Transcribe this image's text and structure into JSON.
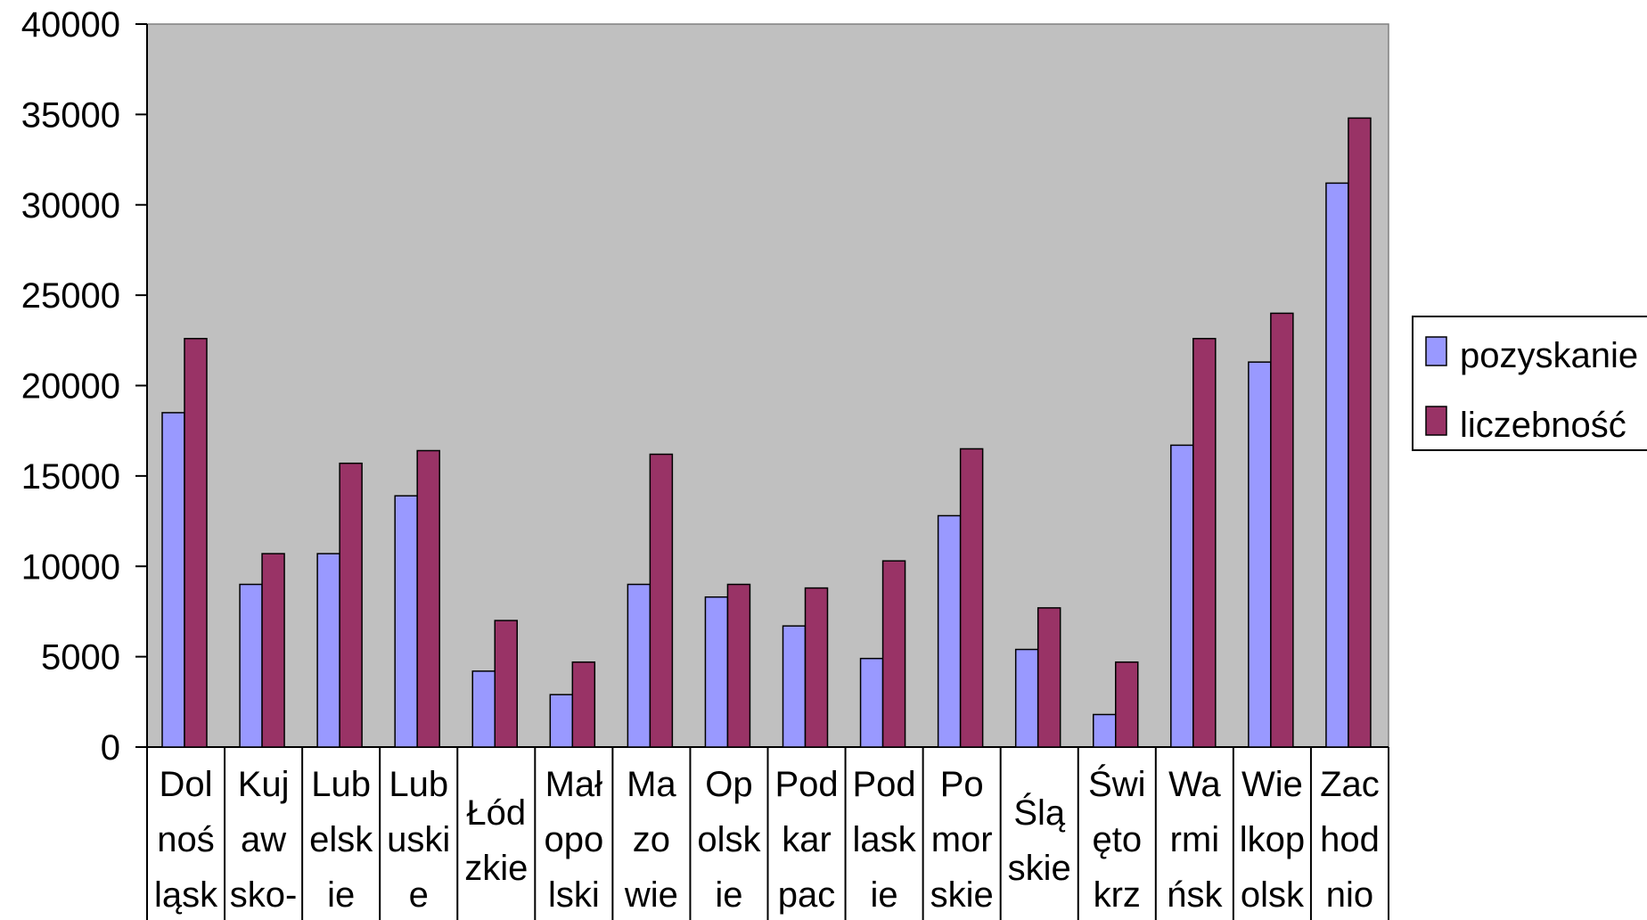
{
  "chart_data": {
    "type": "bar",
    "categories": [
      [
        "Dol",
        "noś",
        "ląsk"
      ],
      [
        "Kuj",
        "aw",
        "sko-"
      ],
      [
        "Lub",
        "elsk",
        "ie"
      ],
      [
        "Lub",
        "uski",
        "e"
      ],
      [
        "Łód",
        "zkie"
      ],
      [
        "Mał",
        "opo",
        "lski"
      ],
      [
        "Ma",
        "zo",
        "wie"
      ],
      [
        "Op",
        "olsk",
        "ie"
      ],
      [
        "Pod",
        "kar",
        "pac"
      ],
      [
        "Pod",
        "lask",
        "ie"
      ],
      [
        "Po",
        "mor",
        "skie"
      ],
      [
        "Ślą",
        "skie"
      ],
      [
        "Świ",
        "ęto",
        "krz"
      ],
      [
        "Wa",
        "rmi",
        "ńsk"
      ],
      [
        "Wie",
        "lkop",
        "olsk"
      ],
      [
        "Zac",
        "hod",
        "nio"
      ]
    ],
    "series": [
      {
        "name": "pozyskanie",
        "color": "#9999ff",
        "values": [
          18500,
          9000,
          10700,
          13900,
          4200,
          2900,
          9000,
          8300,
          6700,
          4900,
          12800,
          5400,
          1800,
          16700,
          21300,
          31200
        ]
      },
      {
        "name": "liczebność",
        "color": "#993366",
        "values": [
          22600,
          10700,
          15700,
          16400,
          7000,
          4700,
          16200,
          9000,
          8800,
          10300,
          16500,
          7700,
          4700,
          22600,
          24000,
          34800
        ]
      }
    ],
    "yticks": [
      "0",
      "5000",
      "10000",
      "15000",
      "20000",
      "25000",
      "30000",
      "35000",
      "40000"
    ],
    "ylim": [
      0,
      40000
    ],
    "plot_background": "#c0c0c0",
    "grid": false,
    "legend_position": "right"
  }
}
